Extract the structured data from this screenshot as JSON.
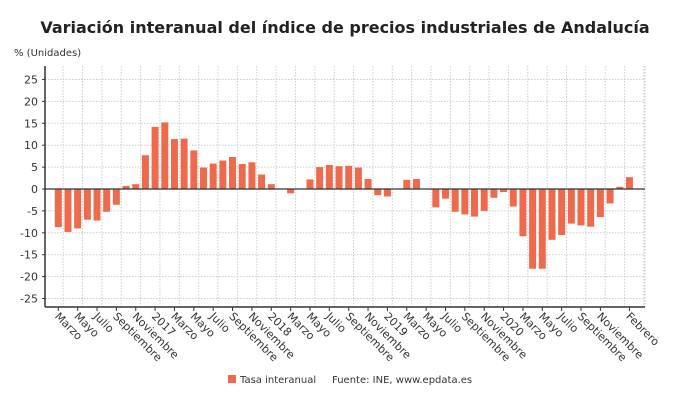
{
  "chart_data": {
    "type": "bar",
    "title": "Variación interanual del índice de precios industriales de Andalucía",
    "ylabel": "% (Unidades)",
    "xlabel": "",
    "ylim": [
      -25,
      25
    ],
    "yticks": [
      25,
      20,
      15,
      10,
      5,
      0,
      -5,
      -10,
      -15,
      -20,
      -25
    ],
    "grid": true,
    "legend_position": "bottom",
    "source": "Fuente: INE, www.epdata.es",
    "bar_color": "#ee6a4c",
    "x_tick_labels": [
      {
        "index": 0,
        "label": "Marzo"
      },
      {
        "index": 2,
        "label": "Mayo"
      },
      {
        "index": 4,
        "label": "Julio"
      },
      {
        "index": 6,
        "label": "Septiembre"
      },
      {
        "index": 8,
        "label": "Noviembre"
      },
      {
        "index": 10,
        "label": "2017"
      },
      {
        "index": 12,
        "label": "Marzo"
      },
      {
        "index": 14,
        "label": "Mayo"
      },
      {
        "index": 16,
        "label": "Julio"
      },
      {
        "index": 18,
        "label": "Septiembre"
      },
      {
        "index": 20,
        "label": "Noviembre"
      },
      {
        "index": 22,
        "label": "2018"
      },
      {
        "index": 24,
        "label": "Marzo"
      },
      {
        "index": 26,
        "label": "Mayo"
      },
      {
        "index": 28,
        "label": "Julio"
      },
      {
        "index": 30,
        "label": "Septiembre"
      },
      {
        "index": 32,
        "label": "Noviembre"
      },
      {
        "index": 34,
        "label": "2019"
      },
      {
        "index": 36,
        "label": "Marzo"
      },
      {
        "index": 38,
        "label": "Mayo"
      },
      {
        "index": 40,
        "label": "Julio"
      },
      {
        "index": 42,
        "label": "Septiembre"
      },
      {
        "index": 44,
        "label": "Noviembre"
      },
      {
        "index": 46,
        "label": "2020"
      },
      {
        "index": 48,
        "label": "Marzo"
      },
      {
        "index": 50,
        "label": "Mayo"
      },
      {
        "index": 52,
        "label": "Julio"
      },
      {
        "index": 54,
        "label": "Septiembre"
      },
      {
        "index": 56,
        "label": "Noviembre"
      },
      {
        "index": 59,
        "label": "Febrero"
      }
    ],
    "series": [
      {
        "name": "Tasa interanual",
        "values": [
          -8.7,
          -9.8,
          -9.0,
          -7.0,
          -7.2,
          -5.2,
          -3.6,
          0.7,
          1.1,
          7.7,
          14.2,
          15.2,
          11.4,
          11.5,
          8.8,
          4.9,
          5.8,
          6.5,
          7.3,
          5.7,
          6.1,
          3.3,
          1.1,
          0.1,
          -1.0,
          0.1,
          2.2,
          5.0,
          5.5,
          5.2,
          5.3,
          4.9,
          2.3,
          -1.4,
          -1.7,
          0.0,
          2.1,
          2.3,
          0.1,
          -4.2,
          -2.2,
          -5.2,
          -5.8,
          -6.3,
          -5.0,
          -2.0,
          -0.7,
          -4.0,
          -10.8,
          -18.2,
          -18.2,
          -11.6,
          -10.5,
          -7.9,
          -8.3,
          -8.6,
          -6.4,
          -3.3,
          0.5,
          2.7
        ]
      }
    ]
  }
}
